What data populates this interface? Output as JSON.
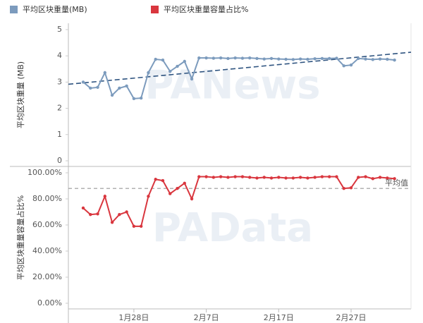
{
  "chart_data": [
    {
      "type": "line",
      "y_label": "平均区块重量 (MB)",
      "categories": [
        null,
        null,
        null,
        null,
        null,
        null,
        null,
        "1月28日",
        null,
        null,
        null,
        null,
        null,
        null,
        null,
        null,
        null,
        "2月7日",
        null,
        null,
        null,
        null,
        null,
        null,
        null,
        null,
        null,
        "2月17日",
        null,
        null,
        null,
        null,
        null,
        null,
        null,
        null,
        null,
        "2月27日",
        null,
        null,
        null,
        null,
        null,
        null
      ],
      "series": [
        {
          "name": "平均区块重量(MB)",
          "color": "#7c9bbd",
          "values": [
            3.0,
            2.77,
            2.8,
            3.36,
            2.5,
            2.77,
            2.85,
            2.37,
            2.39,
            3.36,
            3.87,
            3.84,
            3.41,
            3.6,
            3.79,
            3.12,
            3.92,
            3.92,
            3.91,
            3.92,
            3.9,
            3.92,
            3.91,
            3.92,
            3.9,
            3.88,
            3.9,
            3.88,
            3.87,
            3.86,
            3.88,
            3.87,
            3.89,
            3.9,
            3.9,
            3.91,
            3.62,
            3.65,
            3.9,
            3.88,
            3.86,
            3.88,
            3.87,
            3.84
          ]
        }
      ],
      "trend_line": {
        "color": "#2f5480",
        "values": [
          2.97,
          4.08
        ]
      },
      "ylim": [
        0,
        5
      ],
      "yticks": [
        0,
        1,
        2,
        3,
        4,
        5
      ],
      "watermark": "PANews"
    },
    {
      "type": "line",
      "y_label": "平均区块重量容量占比%",
      "categories": [
        null,
        null,
        null,
        null,
        null,
        null,
        null,
        "1月28日",
        null,
        null,
        null,
        null,
        null,
        null,
        null,
        null,
        null,
        "2月7日",
        null,
        null,
        null,
        null,
        null,
        null,
        null,
        null,
        null,
        "2月17日",
        null,
        null,
        null,
        null,
        null,
        null,
        null,
        null,
        null,
        "2月27日",
        null,
        null,
        null,
        null,
        null,
        null
      ],
      "series": [
        {
          "name": "平均区块重量容量占比%",
          "color": "#d9363e",
          "values": [
            73,
            68,
            68.5,
            82,
            62,
            68,
            70,
            59,
            59,
            82,
            95,
            94,
            84,
            88,
            92,
            80,
            97,
            97,
            96.5,
            97,
            96.5,
            97,
            97,
            96.5,
            96,
            96.5,
            96,
            96.5,
            96,
            96,
            96.5,
            96,
            96.5,
            97,
            97,
            97,
            88,
            88.5,
            96.5,
            97,
            95.5,
            96.5,
            96,
            95.5
          ]
        }
      ],
      "reference_line": {
        "value": 88,
        "label": "平均值",
        "color": "#999999"
      },
      "ylim": [
        0,
        100
      ],
      "yticks": [
        {
          "value": 0,
          "label": "0.00%"
        },
        {
          "value": 20,
          "label": "20.00%"
        },
        {
          "value": 40,
          "label": "40.00%"
        },
        {
          "value": 60,
          "label": "60.00%"
        },
        {
          "value": 80,
          "label": "80.00%"
        },
        {
          "value": 100,
          "label": "100.00%"
        }
      ],
      "watermark": "PAData"
    }
  ]
}
